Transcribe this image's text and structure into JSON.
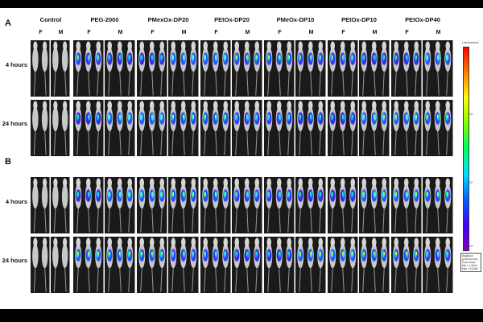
{
  "panels": [
    {
      "letter": "A",
      "rows": [
        "4 hours",
        "24 hours"
      ]
    },
    {
      "letter": "B",
      "rows": [
        "4 hours",
        "24 hours"
      ]
    }
  ],
  "groups": [
    {
      "title": "Control",
      "sexes": [
        "F",
        "M"
      ],
      "control": true
    },
    {
      "title": "PEG-2000",
      "sexes": [
        "F",
        "M"
      ],
      "control": false
    },
    {
      "title": "PMexOx-DP20",
      "sexes": [
        "F",
        "M"
      ],
      "control": false
    },
    {
      "title": "PEtOx-DP20",
      "sexes": [
        "F",
        "M"
      ],
      "control": false
    },
    {
      "title": "PMeOx-DP10",
      "sexes": [
        "F",
        "M"
      ],
      "control": false
    },
    {
      "title": "PEtOx-DP10",
      "sexes": [
        "F",
        "M"
      ],
      "control": false
    },
    {
      "title": "PEtOx-DP40",
      "sexes": [
        "F",
        "M"
      ],
      "control": false
    }
  ],
  "colorbar": {
    "title": "Luminescence",
    "ticks": [
      "10⁸",
      "10⁷",
      "10⁶"
    ],
    "legend_lines": [
      "Radiance",
      "(p/sec/cm²/sr)",
      "Color Scale",
      "Min = 1.00e6",
      "Max = 5.00e8"
    ],
    "colors": [
      "#ff0000",
      "#ff8000",
      "#ffff00",
      "#80ff00",
      "#00ff60",
      "#00e0ff",
      "#0060ff",
      "#4000ff",
      "#8000c0"
    ]
  }
}
